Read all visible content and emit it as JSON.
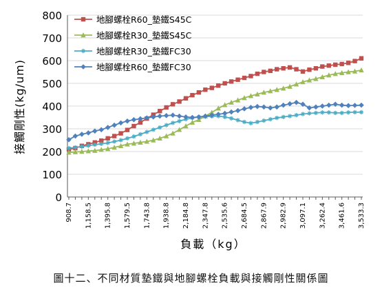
{
  "caption": "圖十二、不同材質墊鐵與地腳螺栓負載與接觸剛性關係圖",
  "chart_data": {
    "type": "line",
    "xlabel": "負載（kg）",
    "ylabel": "接觸剛性(kg/um)",
    "ylim": [
      0,
      800
    ],
    "yticks": [
      0,
      100,
      200,
      300,
      400,
      500,
      600,
      700,
      800
    ],
    "grid": true,
    "legend_position": "top-left",
    "x_tick_labels": [
      "908.7",
      "1,158.5",
      "1,395.8",
      "1,579.5",
      "1,743.8",
      "1,938.8",
      "2,184.8",
      "2,347.8",
      "2,535.6",
      "2,684.5",
      "2,867.9",
      "2,982.9",
      "3,097.1",
      "3,262.4",
      "3,461.6",
      "3,533.3"
    ],
    "x_tick_points": [
      0,
      3,
      6,
      9,
      12,
      15,
      18,
      21,
      24,
      27,
      30,
      33,
      36,
      39,
      42,
      45
    ],
    "n_points": 46,
    "series": [
      {
        "name": "地腳螺栓R60_墊鐵S45C",
        "color": "#C0504D",
        "marker": "square",
        "values": [
          210,
          215,
          225,
          232,
          240,
          248,
          258,
          268,
          280,
          295,
          312,
          328,
          345,
          362,
          378,
          394,
          408,
          420,
          434,
          448,
          460,
          472,
          480,
          490,
          500,
          508,
          516,
          524,
          532,
          542,
          550,
          555,
          562,
          566,
          570,
          562,
          552,
          560,
          566,
          574,
          578,
          582,
          585,
          590,
          598,
          610
        ]
      },
      {
        "name": "地腳螺栓R30_墊鐵S45C",
        "color": "#9BBB59",
        "marker": "triangle",
        "values": [
          196,
          198,
          200,
          202,
          204,
          208,
          212,
          218,
          225,
          232,
          236,
          240,
          244,
          250,
          258,
          268,
          280,
          296,
          312,
          328,
          340,
          356,
          372,
          390,
          405,
          416,
          426,
          436,
          445,
          452,
          460,
          466,
          472,
          478,
          486,
          496,
          506,
          514,
          520,
          528,
          536,
          542,
          546,
          550,
          553,
          558
        ]
      },
      {
        "name": "地腳螺栓R30_墊鐵FC30",
        "color": "#4BACC6",
        "marker": "star",
        "values": [
          215,
          218,
          222,
          226,
          230,
          234,
          238,
          244,
          250,
          258,
          266,
          276,
          286,
          296,
          306,
          316,
          326,
          334,
          342,
          348,
          352,
          354,
          355,
          356,
          352,
          346,
          338,
          330,
          325,
          330,
          336,
          342,
          348,
          352,
          356,
          360,
          365,
          368,
          370,
          372,
          372,
          370,
          370,
          372,
          373,
          373
        ]
      },
      {
        "name": "地腳螺栓R60_墊鐵FC30",
        "color": "#4F81BD",
        "marker": "diamond",
        "values": [
          252,
          268,
          276,
          282,
          290,
          296,
          306,
          316,
          326,
          334,
          340,
          344,
          348,
          352,
          356,
          358,
          360,
          356,
          352,
          350,
          352,
          356,
          360,
          364,
          368,
          374,
          380,
          388,
          394,
          398,
          396,
          392,
          396,
          404,
          410,
          416,
          408,
          392,
          396,
          400,
          404,
          408,
          404,
          402,
          403,
          404
        ]
      }
    ]
  }
}
